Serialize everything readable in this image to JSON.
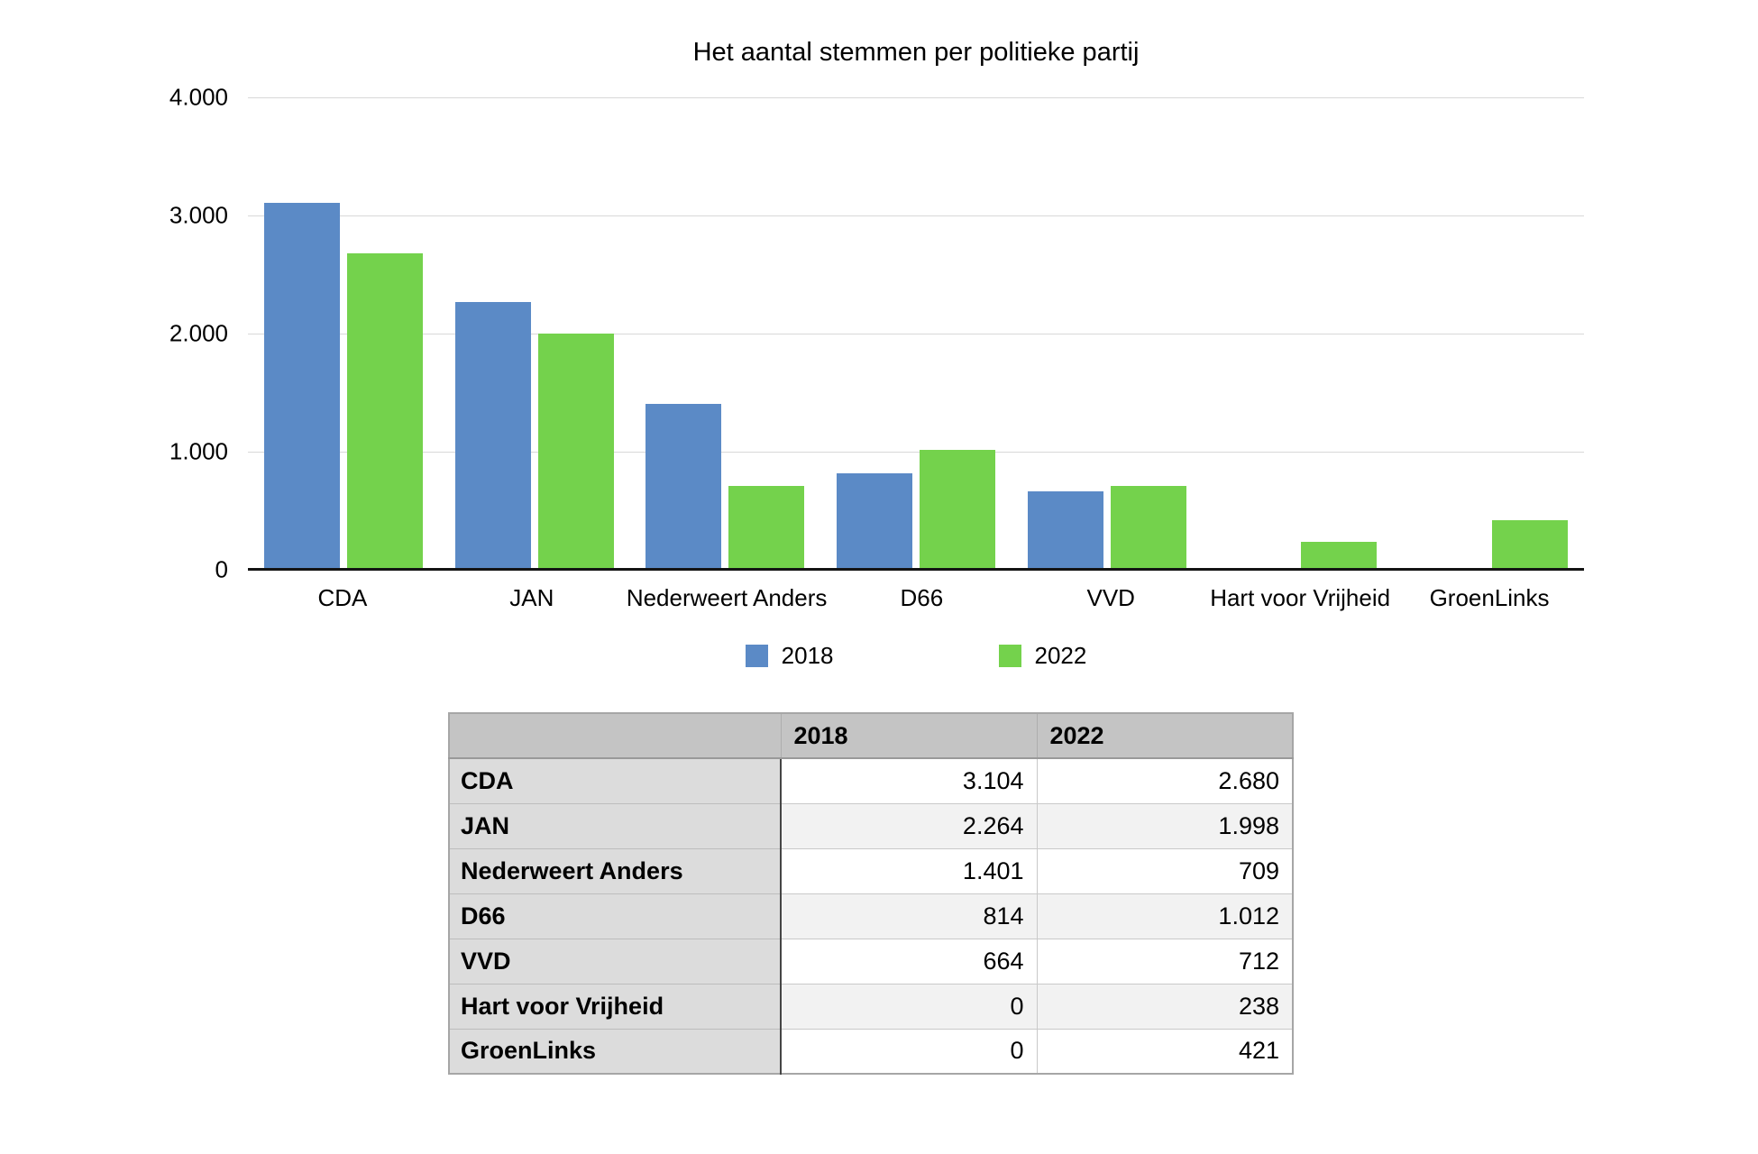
{
  "chart_data": {
    "type": "bar",
    "title": "Het aantal stemmen per politieke partij",
    "categories": [
      "CDA",
      "JAN",
      "Nederweert Anders",
      "D66",
      "VVD",
      "Hart voor Vrijheid",
      "GroenLinks"
    ],
    "series": [
      {
        "name": "2018",
        "color": "#5b8ac6",
        "values": [
          3104,
          2264,
          1401,
          814,
          664,
          0,
          0
        ]
      },
      {
        "name": "2022",
        "color": "#74d24c",
        "values": [
          2680,
          1998,
          709,
          1012,
          712,
          238,
          421
        ]
      }
    ],
    "xlabel": "",
    "ylabel": "",
    "ylim": [
      0,
      4000
    ],
    "ytick_interval": 1000,
    "ytick_labels": [
      "0",
      "1.000",
      "2.000",
      "3.000",
      "4.000"
    ],
    "grid": true,
    "legend_position": "bottom"
  },
  "table": {
    "columns": [
      "",
      "2018",
      "2022"
    ],
    "rows": [
      {
        "label": "CDA",
        "values": [
          "3.104",
          "2.680"
        ]
      },
      {
        "label": "JAN",
        "values": [
          "2.264",
          "1.998"
        ]
      },
      {
        "label": "Nederweert Anders",
        "values": [
          "1.401",
          "709"
        ]
      },
      {
        "label": "D66",
        "values": [
          "814",
          "1.012"
        ]
      },
      {
        "label": "VVD",
        "values": [
          "664",
          "712"
        ]
      },
      {
        "label": "Hart voor Vrijheid",
        "values": [
          "0",
          "238"
        ]
      },
      {
        "label": "GroenLinks",
        "values": [
          "0",
          "421"
        ]
      }
    ]
  },
  "colors": {
    "series_2018": "#5b8ac6",
    "series_2022": "#74d24c"
  }
}
